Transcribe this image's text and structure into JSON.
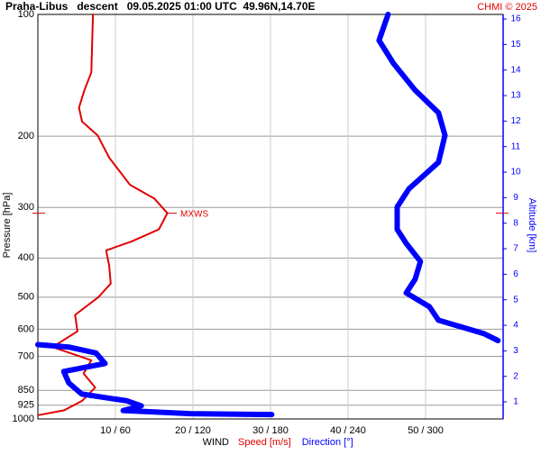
{
  "chart_data": {
    "type": "line",
    "title": "Praha-Libus   descent   09.05.2025 01:00 UTC  49.96N,14.70E",
    "credit": "CHMI © 2025",
    "ylabel": "Pressure [hPa]",
    "y2label": "Altitude [km]",
    "xlabel": "WIND",
    "ylim": [
      100,
      1000
    ],
    "ylog": true,
    "y_reversed": true,
    "yticks": [
      100,
      200,
      300,
      400,
      500,
      600,
      700,
      850,
      925,
      1000
    ],
    "xlim": [
      0,
      60
    ],
    "x2lim": [
      0,
      360
    ],
    "xticks": [
      {
        "value": 10,
        "label": "10 / 60"
      },
      {
        "value": 20,
        "label": "20 / 120"
      },
      {
        "value": 30,
        "label": "30 / 180"
      },
      {
        "value": 40,
        "label": "40 / 240"
      },
      {
        "value": 50,
        "label": "50 / 300"
      }
    ],
    "y2lim": [
      0.33,
      16.18
    ],
    "y2ticks": [
      1,
      2,
      3,
      4,
      5,
      6,
      7,
      8,
      9,
      10,
      11,
      12,
      13,
      14,
      15,
      16
    ],
    "y2color": "#0000ff",
    "grid": true,
    "annotation": {
      "text": "MXWS",
      "pressure": 310,
      "color": "#e00000"
    },
    "series": [
      {
        "name": "Speed [m/s]",
        "color": "#e00000",
        "width": 2,
        "pressure": [
          100,
          139,
          154,
          170,
          184,
          199,
          226,
          264,
          285,
          310,
          340,
          364,
          383,
          418,
          463,
          500,
          553,
          607,
          664,
          716,
          772,
          836,
          902,
          952,
          978
        ],
        "values": [
          7.1,
          6.9,
          6.0,
          5.3,
          5.7,
          7.7,
          9.2,
          11.9,
          15.0,
          16.7,
          15.6,
          12.1,
          8.8,
          9.2,
          9.4,
          7.8,
          4.8,
          5.1,
          1.9,
          6.9,
          5.9,
          7.4,
          5.7,
          3.4,
          0.1
        ]
      },
      {
        "name": "Direction [°]",
        "color": "#0000ff",
        "width": 6,
        "axis": "x2",
        "pressure": [
          100,
          116,
          132,
          154,
          175,
          199,
          232,
          270,
          299,
          340,
          368,
          408,
          451,
          488,
          528,
          570,
          615,
          640,
          null,
          655,
          664,
          687,
          729,
          763,
          815,
          868,
          902,
          928,
          953,
          970,
          975
        ],
        "values": [
          271,
          264,
          275,
          292,
          310,
          315,
          310,
          287,
          278,
          278,
          285,
          296,
          292,
          285,
          303,
          310,
          345,
          356,
          null,
          0,
          24,
          45,
          52,
          20,
          24,
          34,
          69,
          80,
          66,
          118,
          181
        ]
      }
    ]
  }
}
